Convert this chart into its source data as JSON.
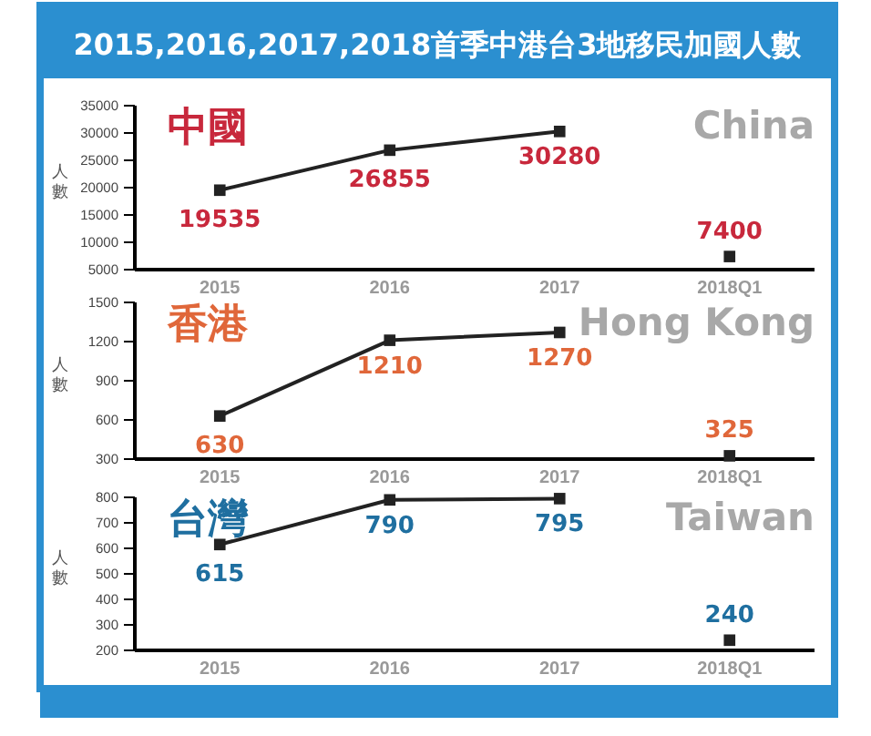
{
  "chart_data": [
    {
      "type": "line",
      "title": "2015,2016,2017,2018首季中港台3地移民加國人數",
      "subtitle": "中國",
      "annotations": [
        "China"
      ],
      "ylabel": "人數",
      "categories": [
        "2015",
        "2016",
        "2017",
        "2018Q1"
      ],
      "ylim": [
        5000,
        35000
      ],
      "yticks": [
        5000,
        10000,
        15000,
        20000,
        25000,
        30000,
        35000
      ],
      "marker": "square",
      "data_labels": true,
      "series": [
        {
          "type": "line",
          "color": "#222222",
          "values": [
            19535,
            26855,
            30280,
            null
          ]
        },
        {
          "type": "scatter",
          "color": "#222222",
          "values": [
            null,
            null,
            null,
            7400
          ]
        }
      ]
    },
    {
      "type": "line",
      "subtitle": "香港",
      "annotations": [
        "Hong Kong"
      ],
      "ylabel": "人數",
      "categories": [
        "2015",
        "2016",
        "2017",
        "2018Q1"
      ],
      "ylim": [
        300,
        1500
      ],
      "yticks": [
        300,
        600,
        900,
        1200,
        1500
      ],
      "marker": "square",
      "data_labels": true,
      "series": [
        {
          "type": "line",
          "color": "#222222",
          "values": [
            630,
            1210,
            1270,
            null
          ]
        },
        {
          "type": "scatter",
          "color": "#222222",
          "values": [
            null,
            null,
            null,
            325
          ]
        }
      ]
    },
    {
      "type": "line",
      "subtitle": "台灣",
      "annotations": [
        "Taiwan"
      ],
      "ylabel": "人數",
      "categories": [
        "2015",
        "2016",
        "2017",
        "2018Q1"
      ],
      "ylim": [
        200,
        800
      ],
      "yticks": [
        200,
        300,
        400,
        500,
        600,
        700,
        800
      ],
      "marker": "square",
      "data_labels": true,
      "series": [
        {
          "type": "line",
          "color": "#222222",
          "values": [
            615,
            790,
            795,
            null
          ]
        },
        {
          "type": "scatter",
          "color": "#222222",
          "values": [
            null,
            null,
            null,
            240
          ]
        }
      ]
    }
  ]
}
